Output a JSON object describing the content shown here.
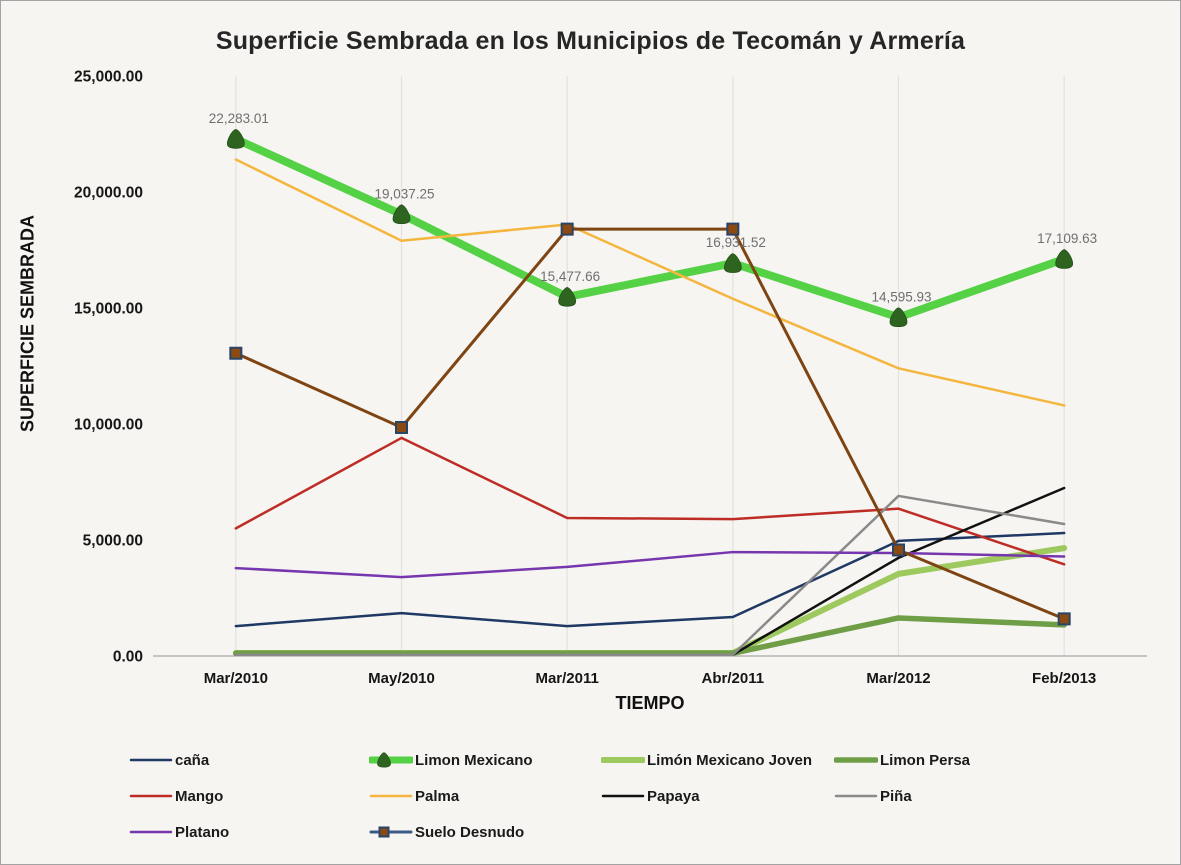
{
  "chart_data": {
    "type": "line",
    "title": "Superficie Sembrada en los Municipios de Tecomán y Armería",
    "xlabel": "TIEMPO",
    "ylabel": "SUPERFICIE SEMBRADA",
    "ylim": [
      0,
      25000
    ],
    "y_tick_labels": [
      "0.00",
      "5,000.00",
      "10,000.00",
      "15,000.00",
      "20,000.00",
      "25,000.00"
    ],
    "y_tick_values": [
      0,
      5000,
      10000,
      15000,
      20000,
      25000
    ],
    "categories": [
      "Mar/2010",
      "May/2010",
      "Mar/2011",
      "Abr/2011",
      "Mar/2012",
      "Feb/2013"
    ],
    "grid": {
      "vertical": true,
      "horizontal": false
    },
    "legend_position": "bottom",
    "series": [
      {
        "key": "cana",
        "name": "caña",
        "color": "#1F3864",
        "width": 2.5,
        "values": [
          1290,
          1850,
          1290,
          1680,
          4960,
          5300
        ]
      },
      {
        "key": "limon_mexicano",
        "name": "Limon Mexicano",
        "color": "#55D145",
        "width": 8,
        "marker": "drop",
        "marker_color": "#2F6420",
        "values": [
          22283.01,
          19037.25,
          15477.66,
          16931.52,
          14595.93,
          17109.63
        ],
        "data_labels": [
          "22,283.01",
          "19,037.25",
          "15,477.66",
          "16,931.52",
          "14,595.93",
          "17,109.63"
        ],
        "label_color": "#6F6F6F"
      },
      {
        "key": "limon_mexicano_joven",
        "name": "Limón Mexicano Joven",
        "color": "#9DC95F",
        "width": 6,
        "values": [
          0,
          0,
          0,
          0,
          3540,
          4650
        ]
      },
      {
        "key": "limon_persa",
        "name": "Limon Persa",
        "color": "#6F9E47",
        "width": 5.5,
        "values": [
          0,
          0,
          0,
          0,
          1640,
          1340
        ]
      },
      {
        "key": "mango",
        "name": "Mango",
        "color": "#BE2D25",
        "width": 2.5,
        "values": [
          5500,
          9400,
          5950,
          5900,
          6350,
          3950
        ]
      },
      {
        "key": "palma",
        "name": "Palma",
        "color": "#F4B63F",
        "width": 2.5,
        "values": [
          21400,
          17900,
          18600,
          15400,
          12400,
          10800
        ]
      },
      {
        "key": "papaya",
        "name": "Papaya",
        "color": "#111111",
        "width": 2.5,
        "values": [
          0,
          0,
          0,
          0,
          4230,
          7240
        ]
      },
      {
        "key": "pina",
        "name": "Piña",
        "color": "#8A8A8A",
        "width": 2.5,
        "values": [
          0,
          0,
          0,
          0,
          6900,
          5690
        ]
      },
      {
        "key": "platano",
        "name": "Platano",
        "color": "#7637AE",
        "width": 2.5,
        "values": [
          3790,
          3400,
          3840,
          4480,
          4440,
          4290
        ]
      },
      {
        "key": "suelo_desnudo",
        "name": "Suelo Desnudo",
        "color": "#7E4513",
        "width": 3,
        "marker": "square",
        "marker_fill": "#8A4A12",
        "marker_stroke": "#2A4468",
        "legend_line_color": "#3D5A87",
        "values": [
          13050,
          9850,
          18400,
          18400,
          4570,
          1600
        ]
      }
    ],
    "legend_items": [
      {
        "series": "cana",
        "col": 0,
        "row": 0
      },
      {
        "series": "limon_mexicano",
        "col": 1,
        "row": 0
      },
      {
        "series": "limon_mexicano_joven",
        "col": 2,
        "row": 0
      },
      {
        "series": "limon_persa",
        "col": 3,
        "row": 0
      },
      {
        "series": "mango",
        "col": 0,
        "row": 1
      },
      {
        "series": "palma",
        "col": 1,
        "row": 1
      },
      {
        "series": "papaya",
        "col": 2,
        "row": 1
      },
      {
        "series": "pina",
        "col": 3,
        "row": 1
      },
      {
        "series": "platano",
        "col": 0,
        "row": 2
      },
      {
        "series": "suelo_desnudo",
        "col": 1,
        "row": 2
      }
    ]
  }
}
